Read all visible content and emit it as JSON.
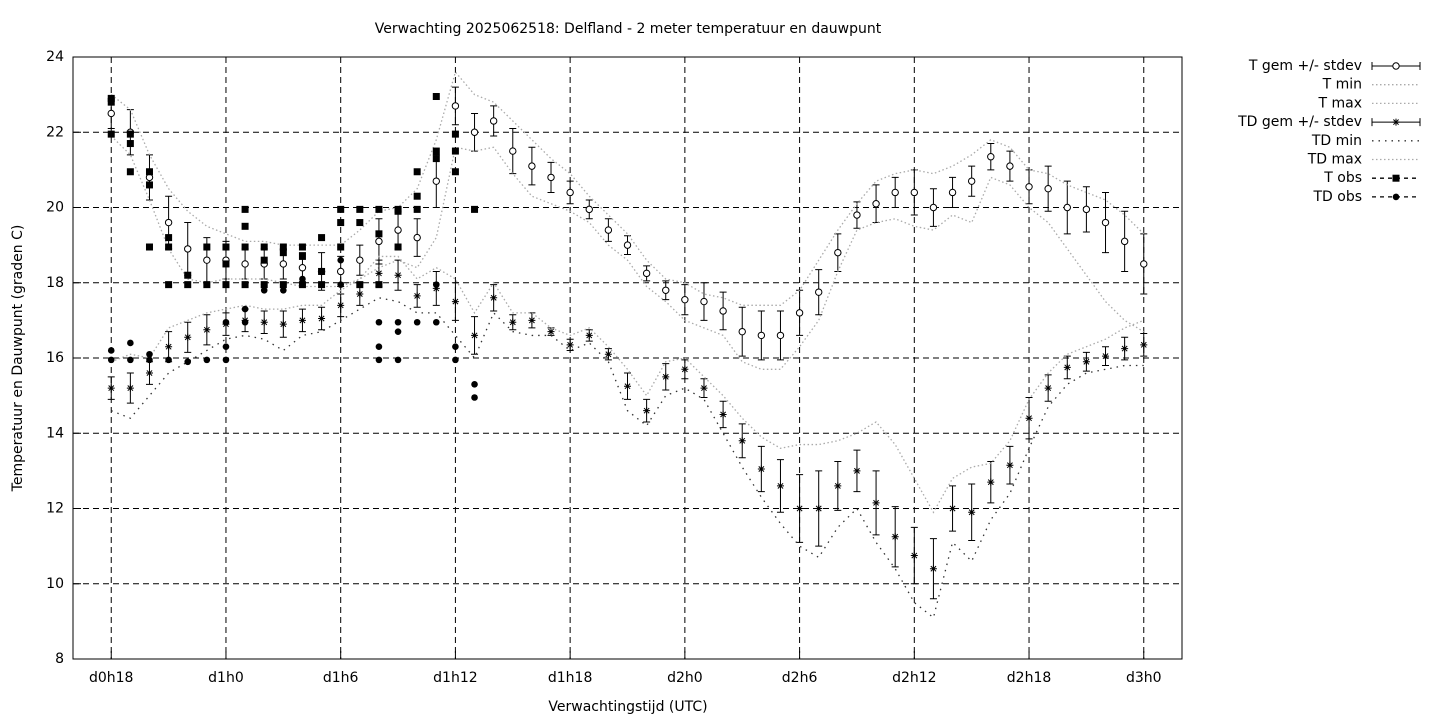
{
  "chart_data": {
    "type": "errorbar",
    "title": "Verwachting 2025062518: Delfland - 2 meter temperatuur en dauwpunt",
    "x_label": "Verwachtingstijd (UTC)",
    "y_label": "Temperatuur en Dauwpunt (graden C)",
    "xlim": [
      16,
      74
    ],
    "ylim": [
      8,
      24
    ],
    "xticks": [
      {
        "value": 18,
        "label": "d0h18"
      },
      {
        "value": 24,
        "label": "d1h0"
      },
      {
        "value": 30,
        "label": "d1h6"
      },
      {
        "value": 36,
        "label": "d1h12"
      },
      {
        "value": 42,
        "label": "d1h18"
      },
      {
        "value": 48,
        "label": "d2h0"
      },
      {
        "value": 54,
        "label": "d2h6"
      },
      {
        "value": 60,
        "label": "d2h12"
      },
      {
        "value": 66,
        "label": "d2h18"
      },
      {
        "value": 72,
        "label": "d3h0"
      }
    ],
    "yticks": [
      8,
      10,
      12,
      14,
      16,
      18,
      20,
      22,
      24
    ],
    "grid": true,
    "legend": "outside-right",
    "x": [
      18,
      19,
      20,
      21,
      22,
      23,
      24,
      25,
      26,
      27,
      28,
      29,
      30,
      31,
      32,
      33,
      34,
      35,
      36,
      37,
      38,
      39,
      40,
      41,
      42,
      43,
      44,
      45,
      46,
      47,
      48,
      49,
      50,
      51,
      52,
      53,
      54,
      55,
      56,
      57,
      58,
      59,
      60,
      61,
      62,
      63,
      64,
      65,
      66,
      67,
      68,
      69,
      70,
      71,
      72
    ],
    "series": [
      {
        "name": "T gem +/- stdev",
        "color": "#000000",
        "marker": "circle",
        "line": "errorbar",
        "values": [
          22.5,
          22.0,
          20.8,
          19.6,
          18.9,
          18.6,
          18.6,
          18.5,
          18.5,
          18.5,
          18.4,
          18.3,
          18.3,
          18.6,
          19.1,
          19.4,
          19.2,
          20.7,
          22.7,
          22.0,
          22.3,
          21.5,
          21.1,
          20.8,
          20.4,
          19.95,
          19.4,
          19.0,
          18.25,
          17.8,
          17.55,
          17.5,
          17.25,
          16.7,
          16.6,
          16.6,
          17.2,
          17.75,
          18.8,
          19.8,
          20.1,
          20.4,
          20.4,
          20.0,
          20.4,
          20.7,
          21.35,
          21.1,
          20.55,
          20.5,
          20.0,
          19.95,
          19.6,
          19.1,
          18.5
        ],
        "errors": [
          0.4,
          0.6,
          0.6,
          0.7,
          0.7,
          0.6,
          0.5,
          0.4,
          0.4,
          0.4,
          0.4,
          0.5,
          0.4,
          0.4,
          0.6,
          0.5,
          0.5,
          0.7,
          0.5,
          0.5,
          0.4,
          0.6,
          0.5,
          0.4,
          0.3,
          0.25,
          0.3,
          0.25,
          0.2,
          0.25,
          0.4,
          0.5,
          0.5,
          0.65,
          0.65,
          0.65,
          0.6,
          0.6,
          0.5,
          0.35,
          0.5,
          0.4,
          0.6,
          0.5,
          0.4,
          0.4,
          0.35,
          0.4,
          0.45,
          0.6,
          0.7,
          0.6,
          0.8,
          0.8,
          0.8
        ]
      },
      {
        "name": "T min",
        "color": "#aaaaaa",
        "marker": "none",
        "line": "dotted",
        "values": [
          21.9,
          21.4,
          20.2,
          18.9,
          18.1,
          18.0,
          18.1,
          18.1,
          18.1,
          18.0,
          17.9,
          17.9,
          17.9,
          18.1,
          18.4,
          18.6,
          18.4,
          19.2,
          21.6,
          21.5,
          21.6,
          20.9,
          20.3,
          20.1,
          19.9,
          19.6,
          19.0,
          18.6,
          17.9,
          17.5,
          17.0,
          16.8,
          16.6,
          15.9,
          15.7,
          15.7,
          16.3,
          17.0,
          18.3,
          19.4,
          19.6,
          19.7,
          19.5,
          19.4,
          19.8,
          19.6,
          20.8,
          20.6,
          20.0,
          19.6,
          18.9,
          18.2,
          17.5,
          17.0,
          16.7
        ]
      },
      {
        "name": "T max",
        "color": "#aaaaaa",
        "marker": "none",
        "line": "dotted",
        "values": [
          23.0,
          22.6,
          21.4,
          20.5,
          19.9,
          19.5,
          19.3,
          19.1,
          19.1,
          19.0,
          19.0,
          19.0,
          19.0,
          19.4,
          19.9,
          20.0,
          20.5,
          21.8,
          23.6,
          23.0,
          22.8,
          22.3,
          21.8,
          21.3,
          20.9,
          20.3,
          19.8,
          19.3,
          18.6,
          18.1,
          18.0,
          17.7,
          17.6,
          17.4,
          17.4,
          17.4,
          17.8,
          18.6,
          19.4,
          20.1,
          20.7,
          20.9,
          21.0,
          20.9,
          21.1,
          21.4,
          21.8,
          21.6,
          21.0,
          20.9,
          20.6,
          20.4,
          20.2,
          19.8,
          19.3
        ]
      },
      {
        "name": "TD gem +/- stdev",
        "color": "#000000",
        "marker": "star",
        "line": "errorbar",
        "values": [
          15.2,
          15.2,
          15.6,
          16.3,
          16.55,
          16.75,
          16.9,
          17.0,
          16.95,
          16.9,
          17.0,
          17.05,
          17.4,
          17.7,
          18.25,
          18.2,
          17.65,
          17.85,
          17.5,
          16.6,
          17.6,
          16.95,
          17.0,
          16.7,
          16.35,
          16.6,
          16.1,
          15.25,
          14.6,
          15.5,
          15.7,
          15.2,
          14.5,
          13.8,
          13.05,
          12.6,
          12.0,
          12.0,
          12.6,
          13.0,
          12.15,
          11.25,
          10.75,
          10.4,
          12.0,
          11.9,
          12.7,
          13.15,
          14.4,
          15.2,
          15.75,
          15.9,
          16.05,
          16.25,
          16.35
        ],
        "errors": [
          0.3,
          0.4,
          0.3,
          0.4,
          0.4,
          0.4,
          0.3,
          0.3,
          0.3,
          0.35,
          0.3,
          0.3,
          0.3,
          0.3,
          0.35,
          0.4,
          0.3,
          0.45,
          0.5,
          0.5,
          0.35,
          0.2,
          0.2,
          0.1,
          0.15,
          0.15,
          0.15,
          0.35,
          0.3,
          0.35,
          0.25,
          0.25,
          0.35,
          0.45,
          0.6,
          0.7,
          0.9,
          1.0,
          0.65,
          0.55,
          0.85,
          0.8,
          0.75,
          0.8,
          0.6,
          0.75,
          0.55,
          0.5,
          0.55,
          0.35,
          0.3,
          0.25,
          0.25,
          0.3,
          0.3
        ]
      },
      {
        "name": "TD min",
        "color": "#333333",
        "marker": "none",
        "line": "dotted-sparse",
        "values": [
          14.6,
          14.4,
          15.0,
          15.6,
          15.9,
          16.2,
          16.5,
          16.6,
          16.5,
          16.2,
          16.6,
          16.7,
          17.0,
          17.3,
          17.6,
          17.5,
          17.2,
          17.2,
          16.6,
          16.0,
          17.2,
          16.7,
          16.6,
          16.6,
          16.2,
          16.4,
          15.9,
          14.6,
          14.2,
          15.0,
          15.2,
          14.9,
          14.0,
          13.1,
          12.3,
          11.6,
          11.0,
          10.7,
          11.5,
          12.0,
          11.1,
          10.4,
          9.5,
          9.1,
          11.1,
          10.6,
          11.7,
          12.4,
          13.6,
          14.7,
          15.3,
          15.6,
          15.7,
          15.8,
          15.8
        ]
      },
      {
        "name": "TD max",
        "color": "#aaaaaa",
        "marker": "none",
        "line": "dotted",
        "values": [
          15.9,
          16.1,
          16.0,
          16.8,
          17.0,
          17.2,
          17.3,
          17.4,
          17.3,
          17.3,
          17.4,
          17.4,
          17.8,
          18.1,
          18.7,
          18.7,
          18.1,
          18.4,
          18.1,
          17.2,
          18.0,
          17.2,
          17.2,
          16.8,
          16.6,
          16.8,
          16.3,
          15.7,
          15.0,
          15.9,
          16.0,
          15.5,
          15.0,
          14.4,
          13.9,
          13.6,
          13.7,
          13.7,
          13.8,
          14.0,
          14.3,
          13.7,
          12.8,
          11.9,
          12.8,
          13.1,
          13.2,
          13.8,
          14.9,
          15.6,
          16.1,
          16.3,
          16.5,
          16.8,
          17.0
        ]
      },
      {
        "name": "T obs",
        "color": "#000000",
        "marker": "square",
        "line": "points",
        "x": [
          18,
          18,
          18,
          19,
          19,
          19,
          20,
          20,
          20,
          21,
          21,
          21,
          22,
          22,
          23,
          23,
          24,
          24,
          24,
          25,
          25,
          25,
          25,
          26,
          26,
          26,
          27,
          27,
          27,
          28,
          28,
          28,
          29,
          29,
          29,
          30,
          30,
          30,
          31,
          31,
          31,
          32,
          32,
          32,
          33,
          33,
          33,
          34,
          34,
          34,
          35,
          35,
          35,
          36,
          36,
          36,
          37
        ],
        "values": [
          22.9,
          22.8,
          21.95,
          21.95,
          21.7,
          20.95,
          20.95,
          20.6,
          18.95,
          19.2,
          18.95,
          17.95,
          18.2,
          17.95,
          18.95,
          17.95,
          18.95,
          18.5,
          17.95,
          19.95,
          19.5,
          18.95,
          17.95,
          18.95,
          18.6,
          17.95,
          18.95,
          18.8,
          17.95,
          18.95,
          18.7,
          17.95,
          19.2,
          18.3,
          17.95,
          19.95,
          19.6,
          18.95,
          19.95,
          19.6,
          17.95,
          19.95,
          19.3,
          17.95,
          19.95,
          19.9,
          18.95,
          20.95,
          20.3,
          19.95,
          22.95,
          21.5,
          21.3,
          21.95,
          21.5,
          20.95,
          19.95
        ]
      },
      {
        "name": "TD obs",
        "color": "#000000",
        "marker": "dot",
        "line": "points",
        "x": [
          18,
          18,
          19,
          19,
          20,
          20,
          21,
          22,
          23,
          24,
          24,
          24,
          25,
          25,
          25,
          26,
          26,
          27,
          27,
          28,
          28,
          29,
          29,
          30,
          30,
          30,
          31,
          32,
          32,
          32,
          33,
          33,
          33,
          34,
          35,
          35,
          36,
          36,
          37,
          37
        ],
        "values": [
          16.2,
          15.95,
          16.4,
          15.95,
          16.1,
          15.95,
          15.95,
          15.9,
          15.95,
          16.95,
          16.3,
          15.95,
          17.95,
          17.3,
          16.95,
          17.95,
          17.8,
          17.95,
          17.8,
          18.1,
          17.95,
          18.3,
          17.95,
          18.95,
          18.6,
          17.95,
          17.95,
          16.95,
          16.3,
          15.95,
          16.95,
          16.7,
          15.95,
          16.95,
          17.95,
          16.95,
          16.3,
          15.95,
          15.3,
          14.95
        ]
      }
    ]
  }
}
